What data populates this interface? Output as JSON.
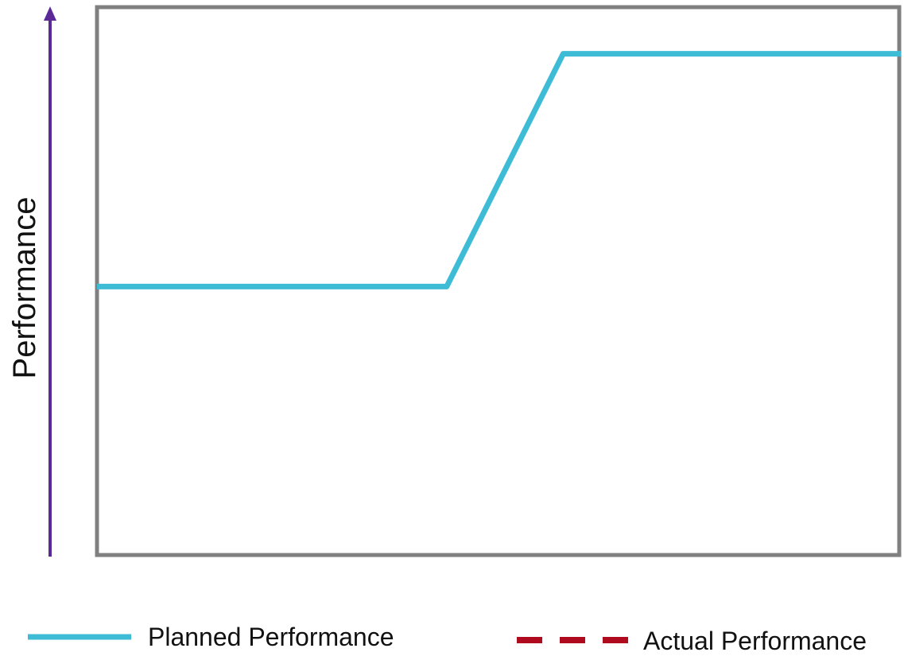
{
  "chart_data": {
    "type": "line",
    "ylabel": "Performance",
    "xlabel": "",
    "grid": false,
    "x_range": [
      0,
      10
    ],
    "y_range": [
      0,
      10
    ],
    "series": [
      {
        "name": "Planned Performance",
        "color": "#3ebcd6",
        "style": "solid",
        "x": [
          0,
          4.35,
          5.8,
          10
        ],
        "y": [
          4.9,
          4.9,
          9.15,
          9.15
        ]
      },
      {
        "name": "Actual Performance",
        "color": "#b00a1e",
        "style": "dashed",
        "x": [],
        "y": []
      }
    ],
    "legend": {
      "position": "bottom"
    },
    "colors": {
      "frame": "#808080",
      "y_arrow": "#5b2a96"
    }
  }
}
